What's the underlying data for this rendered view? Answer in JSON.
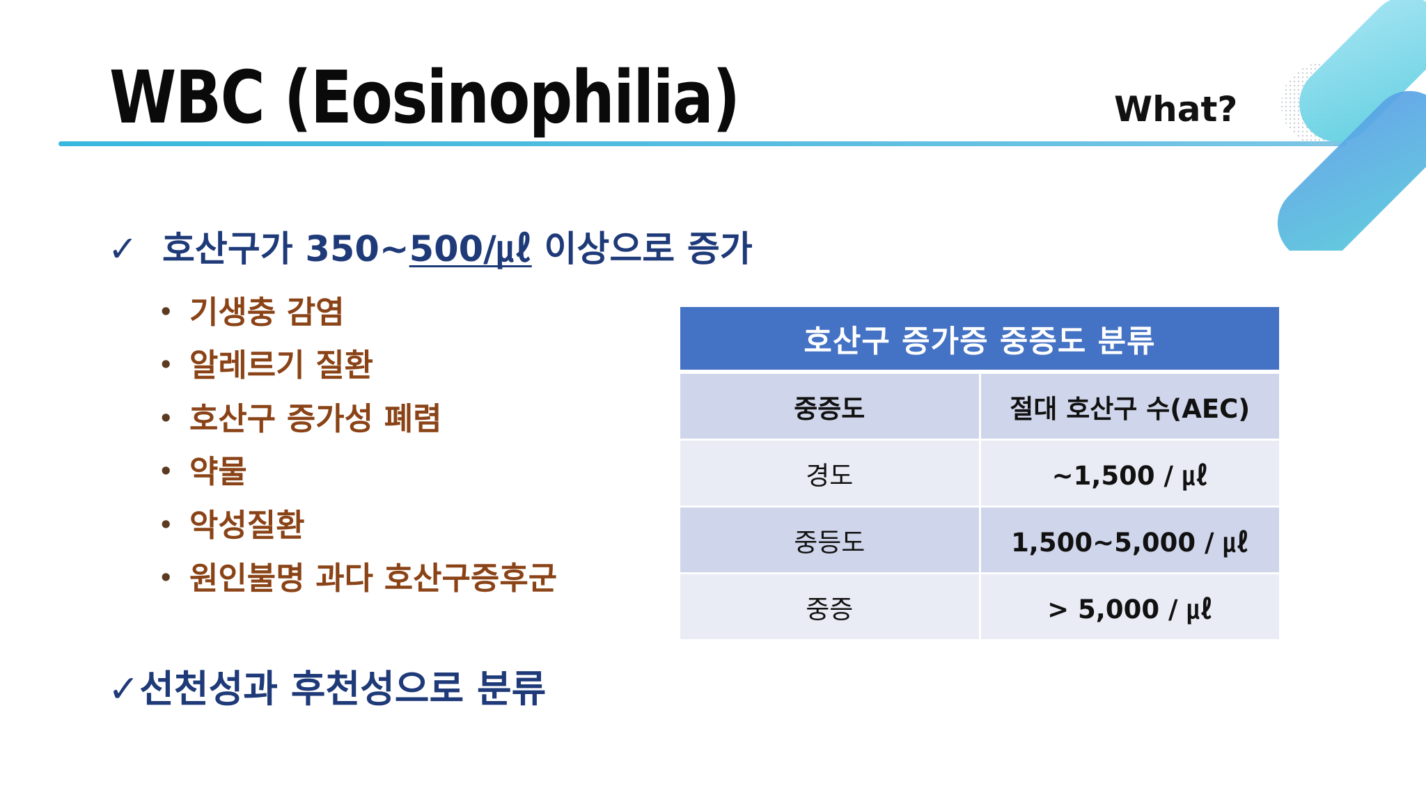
{
  "slide": {
    "title": "WBC (Eosinophilia)",
    "subtitle": "What?"
  },
  "main_bullet": {
    "check": "✓",
    "text_before": "호산구가  350~",
    "text_underlined": "500/㎕",
    "text_after": " 이상으로 증가"
  },
  "causes": [
    {
      "bullet": "•",
      "label": "기생충 감염"
    },
    {
      "bullet": "•",
      "label": "알레르기 질환"
    },
    {
      "bullet": "•",
      "label": "호산구 증가성 폐렴"
    },
    {
      "bullet": "•",
      "label": "약물"
    },
    {
      "bullet": "•",
      "label": "악성질환"
    },
    {
      "bullet": "•",
      "label": "원인불명 과다 호산구증후군"
    }
  ],
  "bottom_bullet": {
    "check": "✓",
    "text": "선천성과 후천성으로 분류"
  },
  "severity_table": {
    "title": "호산구 증가증 중증도 분류",
    "columns": [
      "중증도",
      "절대 호산구 수(AEC)"
    ],
    "rows": [
      {
        "severity": "경도",
        "aec": "~1,500 / ㎕"
      },
      {
        "severity": "중등도",
        "aec": "1,500~5,000 / ㎕"
      },
      {
        "severity": "중증",
        "aec": ">  5,000 / ㎕"
      }
    ]
  },
  "colors": {
    "title_text": "#0a0a0a",
    "accent_blue": "#1f3a78",
    "cause_brown": "#8a4316",
    "table_header": "#4472c4",
    "table_row_dark": "#cfd5ea",
    "table_row_light": "#e9ebf5",
    "rule": "#38b8dd"
  }
}
